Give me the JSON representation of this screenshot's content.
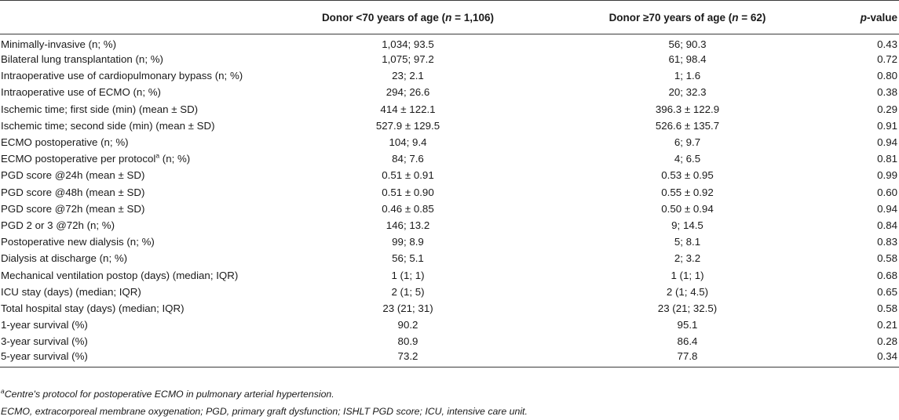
{
  "table": {
    "headers": {
      "label": "",
      "young_prefix": "Donor <70 years of age (",
      "young_n_symbol": "n",
      "young_n_value": " = 1,106)",
      "old_prefix": "Donor ≥70 years of age (",
      "old_n_symbol": "n",
      "old_n_value": " = 62)",
      "p_symbol": "p",
      "p_suffix": "-value"
    },
    "rows": [
      {
        "label": "Minimally-invasive (n; %)",
        "young": "1,034; 93.5",
        "old": "56; 90.3",
        "p": "0.43"
      },
      {
        "label": "Bilateral lung transplantation (n; %)",
        "young": "1,075; 97.2",
        "old": "61; 98.4",
        "p": "0.72"
      },
      {
        "label": "Intraoperative use of cardiopulmonary bypass (n; %)",
        "young": "23; 2.1",
        "old": "1; 1.6",
        "p": "0.80"
      },
      {
        "label": "Intraoperative use of ECMO (n; %)",
        "young": "294; 26.6",
        "old": "20; 32.3",
        "p": "0.38"
      },
      {
        "label": "Ischemic time; first side (min) (mean ± SD)",
        "young": "414 ± 122.1",
        "old": "396.3 ± 122.9",
        "p": "0.29"
      },
      {
        "label": "Ischemic time; second side (min) (mean ± SD)",
        "young": "527.9 ± 129.5",
        "old": "526.6 ± 135.7",
        "p": "0.91"
      },
      {
        "label": "ECMO postoperative (n; %)",
        "young": "104; 9.4",
        "old": "6; 9.7",
        "p": "0.94"
      },
      {
        "label": "ECMO postoperative per protocol",
        "label_sup": "a",
        "label_after": " (n; %)",
        "young": "84; 7.6",
        "old": "4; 6.5",
        "p": "0.81"
      },
      {
        "label": "PGD score @24h (mean ± SD)",
        "young": "0.51 ± 0.91",
        "old": "0.53 ± 0.95",
        "p": "0.99"
      },
      {
        "label": "PGD score @48h (mean ± SD)",
        "young": "0.51 ± 0.90",
        "old": "0.55 ± 0.92",
        "p": "0.60"
      },
      {
        "label": "PGD score @72h (mean ± SD)",
        "young": "0.46 ± 0.85",
        "old": "0.50 ± 0.94",
        "p": "0.94"
      },
      {
        "label": "PGD 2 or 3 @72h (n; %)",
        "young": "146; 13.2",
        "old": "9; 14.5",
        "p": "0.84"
      },
      {
        "label": "Postoperative new dialysis (n; %)",
        "young": "99; 8.9",
        "old": "5; 8.1",
        "p": "0.83"
      },
      {
        "label": "Dialysis at discharge (n; %)",
        "young": "56; 5.1",
        "old": "2; 3.2",
        "p": "0.58"
      },
      {
        "label": "Mechanical ventilation postop (days) (median; IQR)",
        "young": "1 (1; 1)",
        "old": "1 (1; 1)",
        "p": "0.68"
      },
      {
        "label": "ICU stay (days) (median; IQR)",
        "young": "2 (1; 5)",
        "old": "2 (1; 4.5)",
        "p": "0.65"
      },
      {
        "label": "Total hospital stay (days) (median; IQR)",
        "young": "23 (21; 31)",
        "old": "23 (21; 32.5)",
        "p": "0.58"
      },
      {
        "label": "1-year survival (%)",
        "young": "90.2",
        "old": "95.1",
        "p": "0.21"
      },
      {
        "label": "3-year survival (%)",
        "young": "80.9",
        "old": "86.4",
        "p": "0.28"
      },
      {
        "label": "5-year survival (%)",
        "young": "73.2",
        "old": "77.8",
        "p": "0.34"
      }
    ]
  },
  "footnotes": {
    "a_marker": "a",
    "a_text": "Centre's protocol for postoperative ECMO in pulmonary arterial hypertension.",
    "abbreviations": "ECMO, extracorporeal membrane oxygenation; PGD, primary graft dysfunction; ISHLT PGD score; ICU, intensive care unit."
  }
}
